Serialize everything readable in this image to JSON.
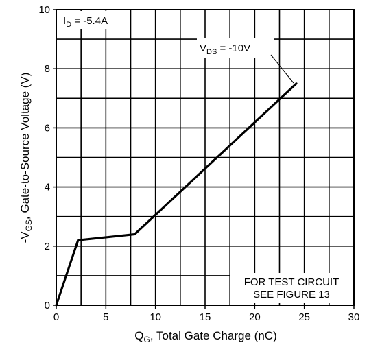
{
  "chart_data": {
    "type": "line",
    "xlabel": {
      "main": "Q",
      "sub": "G",
      "rest": ", Total Gate Charge (nC)"
    },
    "ylabel": {
      "main": "-V",
      "sub": "GS",
      "rest": ", Gate-to-Source Voltage (V)"
    },
    "xlim": [
      0,
      30
    ],
    "ylim": [
      0,
      10
    ],
    "x_ticks": [
      0,
      5,
      10,
      15,
      20,
      25,
      30
    ],
    "y_ticks": [
      0,
      2,
      4,
      6,
      8,
      10
    ],
    "minor_grid_step_x": 2.5,
    "minor_grid_step_y": 1,
    "grid": true,
    "series": [
      {
        "x": [
          0,
          2.2,
          7.9,
          24.2
        ],
        "y": [
          0,
          2.2,
          2.4,
          7.5
        ],
        "color": "#000000"
      }
    ],
    "annotations": {
      "id_label": {
        "main": "I",
        "sub": "D",
        "rest": " = -5.4A"
      },
      "vds_label": {
        "main": "V",
        "sub": "DS",
        "rest": " = -10V"
      },
      "test_circuit_line1": "FOR TEST CIRCUIT",
      "test_circuit_line2": "SEE FIGURE 13"
    }
  }
}
